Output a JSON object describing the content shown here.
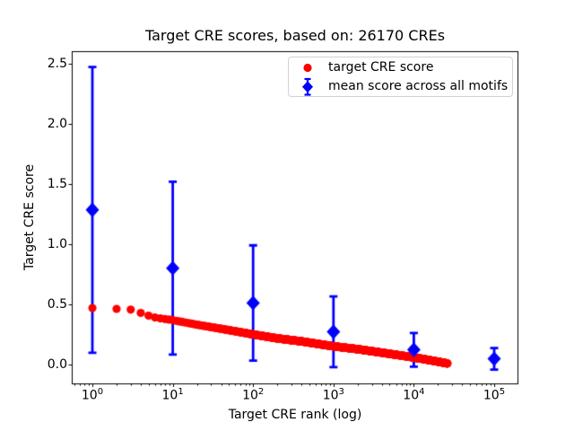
{
  "title": "Target CRE scores, based on: 26170 CREs",
  "chart_data": {
    "type": "scatter",
    "title": "Target CRE scores, based on: 26170 CREs",
    "xlabel": "Target CRE rank (log)",
    "ylabel": "Target CRE score",
    "x_scale": "log",
    "grid": false,
    "xlim": [
      0.568,
      195000
    ],
    "ylim": [
      -0.16,
      2.6
    ],
    "x_tick_base": "10",
    "x_tick_exponents": [
      0,
      1,
      2,
      3,
      4,
      5
    ],
    "y_ticks": [
      0.0,
      0.5,
      1.0,
      1.5,
      2.0,
      2.5
    ],
    "background_color": "#ffffff",
    "frame_color": "#000000",
    "legend": {
      "position": "upper right",
      "entries": [
        "target CRE score",
        "mean score across all motifs"
      ]
    },
    "series": [
      {
        "name": "target CRE score",
        "type": "scatter",
        "marker": "circle",
        "color": "#ff0000",
        "n_points": 26170,
        "description": "one dot per CRE rank 1..26170, dense decreasing band on log x-axis",
        "anchors": {
          "log10_rank": [
            0,
            0.301,
            0.477,
            0.602,
            0.699,
            0.778,
            0.903,
            1.0,
            1.301,
            1.602,
            2.0,
            2.301,
            2.602,
            3.0,
            3.301,
            3.602,
            3.903,
            4.1,
            4.301,
            4.4178
          ],
          "score": [
            0.468,
            0.461,
            0.455,
            0.427,
            0.404,
            0.389,
            0.376,
            0.367,
            0.329,
            0.295,
            0.248,
            0.215,
            0.19,
            0.149,
            0.125,
            0.096,
            0.066,
            0.045,
            0.021,
            0.006
          ]
        }
      },
      {
        "name": "mean score across all motifs",
        "type": "scatter_errorbar",
        "marker": "diamond",
        "color": "#0000ff",
        "x": [
          1,
          10,
          100,
          1000,
          10000,
          100000
        ],
        "y": [
          1.285,
          0.8,
          0.51,
          0.27,
          0.12,
          0.045
        ],
        "yerr": [
          1.19,
          0.72,
          0.48,
          0.295,
          0.14,
          0.09
        ]
      }
    ]
  }
}
